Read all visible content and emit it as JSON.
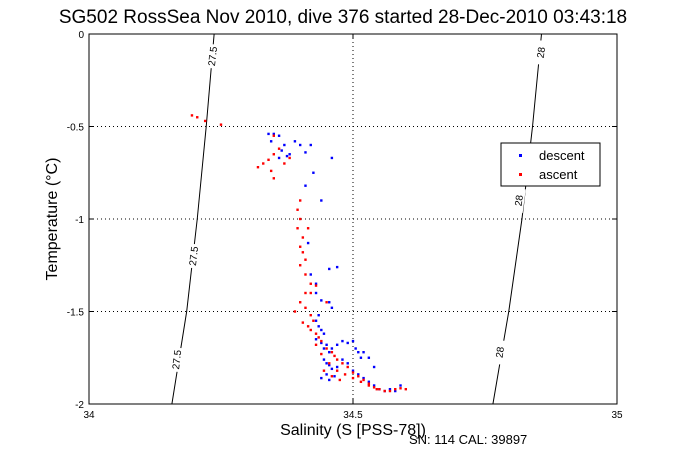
{
  "chart_data": {
    "type": "scatter",
    "title": "SG502 RossSea Nov 2010, dive 376 started 28-Dec-2010 03:43:18",
    "xlabel": "Salinity (S [PSS-78])",
    "ylabel": "Temperature (°C)",
    "xlim": [
      34,
      35
    ],
    "ylim": [
      -2,
      0
    ],
    "xticks": [
      {
        "value": 34,
        "label": "34"
      },
      {
        "value": 34.5,
        "label": "34.5"
      },
      {
        "value": 35,
        "label": "35"
      }
    ],
    "yticks": [
      {
        "value": 0,
        "label": "0"
      },
      {
        "value": -0.5,
        "label": "-0.5"
      },
      {
        "value": -1,
        "label": "-1"
      },
      {
        "value": -1.5,
        "label": "-1.5"
      },
      {
        "value": -2,
        "label": "-2"
      }
    ],
    "grid": true,
    "legend": "upper-right",
    "footnote": "SN: 114  CAL: 39897",
    "isopycnals": [
      {
        "label": "27.5",
        "points": [
          [
            34.157,
            -2.0
          ],
          [
            34.185,
            -1.5
          ],
          [
            34.205,
            -1.0
          ],
          [
            34.222,
            -0.5
          ],
          [
            34.237,
            0.0
          ]
        ],
        "label_positions": [
          {
            "x": 34.165,
            "y": -1.76
          },
          {
            "x": 34.197,
            "y": -1.2
          },
          {
            "x": 34.233,
            "y": -0.12
          }
        ]
      },
      {
        "label": "28",
        "points": [
          [
            34.765,
            -2.0
          ],
          [
            34.795,
            -1.5
          ],
          [
            34.82,
            -1.0
          ],
          [
            34.84,
            -0.5
          ],
          [
            34.857,
            0.0
          ]
        ],
        "label_positions": [
          {
            "x": 34.777,
            "y": -1.72
          },
          {
            "x": 34.813,
            "y": -0.9
          },
          {
            "x": 34.855,
            "y": -0.1
          }
        ]
      }
    ],
    "series": [
      {
        "name": "descent",
        "color": "#0000ff",
        "points": [
          [
            34.34,
            -0.54
          ],
          [
            34.35,
            -0.54
          ],
          [
            34.36,
            -0.55
          ],
          [
            34.345,
            -0.58
          ],
          [
            34.37,
            -0.6
          ],
          [
            34.365,
            -0.63
          ],
          [
            34.38,
            -0.65
          ],
          [
            34.36,
            -0.67
          ],
          [
            34.375,
            -0.66
          ],
          [
            34.39,
            -0.58
          ],
          [
            34.4,
            -0.6
          ],
          [
            34.41,
            -0.64
          ],
          [
            34.42,
            -0.6
          ],
          [
            34.425,
            -0.75
          ],
          [
            34.44,
            -0.9
          ],
          [
            34.46,
            -0.67
          ],
          [
            34.41,
            -0.82
          ],
          [
            34.415,
            -1.13
          ],
          [
            34.42,
            -1.3
          ],
          [
            34.43,
            -1.35
          ],
          [
            34.43,
            -1.4
          ],
          [
            34.44,
            -1.44
          ],
          [
            34.455,
            -1.45
          ],
          [
            34.435,
            -1.52
          ],
          [
            34.46,
            -1.48
          ],
          [
            34.455,
            -1.27
          ],
          [
            34.47,
            -1.26
          ],
          [
            34.43,
            -1.55
          ],
          [
            34.435,
            -1.58
          ],
          [
            34.44,
            -1.6
          ],
          [
            34.445,
            -1.62
          ],
          [
            34.43,
            -1.65
          ],
          [
            34.44,
            -1.67
          ],
          [
            34.445,
            -1.7
          ],
          [
            34.45,
            -1.68
          ],
          [
            34.455,
            -1.72
          ],
          [
            34.46,
            -1.7
          ],
          [
            34.47,
            -1.68
          ],
          [
            34.48,
            -1.66
          ],
          [
            34.49,
            -1.67
          ],
          [
            34.5,
            -1.66
          ],
          [
            34.505,
            -1.7
          ],
          [
            34.51,
            -1.72
          ],
          [
            34.515,
            -1.75
          ],
          [
            34.52,
            -1.72
          ],
          [
            34.53,
            -1.75
          ],
          [
            34.54,
            -1.8
          ],
          [
            34.445,
            -1.76
          ],
          [
            34.45,
            -1.78
          ],
          [
            34.455,
            -1.79
          ],
          [
            34.46,
            -1.81
          ],
          [
            34.47,
            -1.8
          ],
          [
            34.48,
            -1.76
          ],
          [
            34.49,
            -1.78
          ],
          [
            34.5,
            -1.82
          ],
          [
            34.51,
            -1.84
          ],
          [
            34.52,
            -1.86
          ],
          [
            34.53,
            -1.88
          ],
          [
            34.54,
            -1.9
          ],
          [
            34.55,
            -1.92
          ],
          [
            34.56,
            -1.93
          ],
          [
            34.57,
            -1.92
          ],
          [
            34.58,
            -1.93
          ],
          [
            34.59,
            -1.9
          ],
          [
            34.44,
            -1.86
          ],
          [
            34.45,
            -1.84
          ],
          [
            34.455,
            -1.87
          ],
          [
            34.465,
            -1.85
          ]
        ]
      },
      {
        "name": "ascent",
        "color": "#ff0000",
        "points": [
          [
            34.195,
            -0.44
          ],
          [
            34.205,
            -0.45
          ],
          [
            34.22,
            -0.47
          ],
          [
            34.25,
            -0.49
          ],
          [
            34.35,
            -0.55
          ],
          [
            34.36,
            -0.62
          ],
          [
            34.32,
            -0.72
          ],
          [
            34.33,
            -0.7
          ],
          [
            34.34,
            -0.68
          ],
          [
            34.35,
            -0.65
          ],
          [
            34.345,
            -0.74
          ],
          [
            34.35,
            -0.78
          ],
          [
            34.37,
            -0.7
          ],
          [
            34.38,
            -0.67
          ],
          [
            34.4,
            -0.9
          ],
          [
            34.395,
            -0.95
          ],
          [
            34.4,
            -1.0
          ],
          [
            34.395,
            -1.05
          ],
          [
            34.4,
            -1.15
          ],
          [
            34.405,
            -1.18
          ],
          [
            34.41,
            -1.22
          ],
          [
            34.4,
            -1.25
          ],
          [
            34.41,
            -1.3
          ],
          [
            34.42,
            -1.35
          ],
          [
            34.41,
            -1.4
          ],
          [
            34.4,
            -1.45
          ],
          [
            34.41,
            -1.48
          ],
          [
            34.42,
            -1.52
          ],
          [
            34.39,
            -1.5
          ],
          [
            34.405,
            -1.56
          ],
          [
            34.415,
            -1.58
          ],
          [
            34.42,
            -1.6
          ],
          [
            34.43,
            -1.62
          ],
          [
            34.44,
            -1.66
          ],
          [
            34.45,
            -1.7
          ],
          [
            34.46,
            -1.72
          ],
          [
            34.465,
            -1.74
          ],
          [
            34.47,
            -1.76
          ],
          [
            34.48,
            -1.78
          ],
          [
            34.49,
            -1.8
          ],
          [
            34.5,
            -1.83
          ],
          [
            34.51,
            -1.85
          ],
          [
            34.52,
            -1.87
          ],
          [
            34.53,
            -1.89
          ],
          [
            34.54,
            -1.91
          ],
          [
            34.55,
            -1.92
          ],
          [
            34.56,
            -1.93
          ],
          [
            34.57,
            -1.93
          ],
          [
            34.58,
            -1.92
          ],
          [
            34.59,
            -1.915
          ],
          [
            34.6,
            -1.92
          ],
          [
            34.445,
            -1.82
          ],
          [
            34.46,
            -1.85
          ],
          [
            34.475,
            -1.87
          ],
          [
            34.43,
            -1.68
          ],
          [
            34.425,
            -1.55
          ],
          [
            34.435,
            -1.64
          ],
          [
            34.44,
            -1.73
          ],
          [
            34.455,
            -1.78
          ],
          [
            34.47,
            -1.82
          ],
          [
            34.485,
            -1.84
          ],
          [
            34.5,
            -1.86
          ],
          [
            34.515,
            -1.88
          ],
          [
            34.53,
            -1.9
          ],
          [
            34.545,
            -1.92
          ],
          [
            34.42,
            -1.4
          ],
          [
            34.43,
            -1.36
          ],
          [
            34.45,
            -1.45
          ],
          [
            34.415,
            -1.05
          ],
          [
            34.405,
            -1.1
          ]
        ]
      }
    ]
  }
}
